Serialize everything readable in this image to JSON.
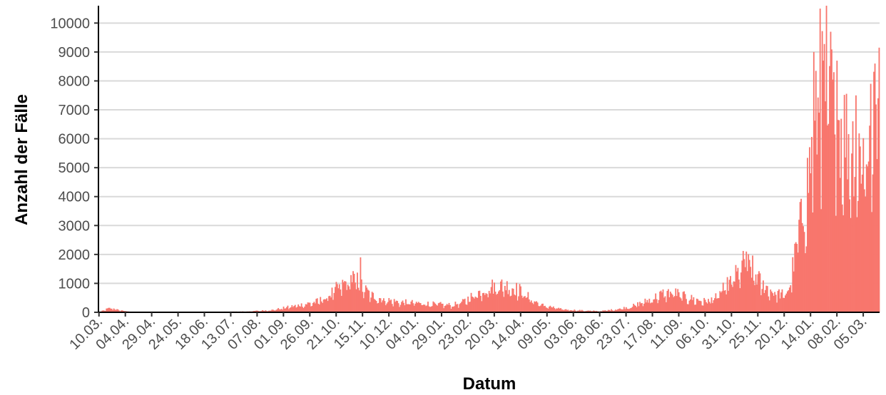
{
  "chart_data": {
    "type": "bar",
    "title": "",
    "xlabel": "Datum",
    "ylabel": "Anzahl der Fälle",
    "ylim": [
      0,
      10600
    ],
    "y_ticks": [
      0,
      1000,
      2000,
      3000,
      4000,
      5000,
      6000,
      7000,
      8000,
      9000,
      10000
    ],
    "y_tick_labels": [
      "0",
      "1000",
      "2000",
      "3000",
      "4000",
      "5000",
      "6000",
      "7000",
      "8000",
      "9000",
      "10000"
    ],
    "x_tick_labels": [
      "10.03.",
      "04.04.",
      "29.04.",
      "24.05.",
      "18.06.",
      "13.07.",
      "07.08.",
      "01.09.",
      "26.09.",
      "21.10.",
      "15.11.",
      "10.12.",
      "04.01.",
      "29.01.",
      "23.02.",
      "20.03.",
      "14.04.",
      "09.05.",
      "03.06.",
      "28.06.",
      "23.07.",
      "17.08.",
      "11.09.",
      "06.10.",
      "31.10.",
      "25.11.",
      "20.12.",
      "14.01.",
      "08.02.",
      "05.03."
    ],
    "x_tick_step_days": 25,
    "grid": true,
    "bar_color": "#F8766D",
    "series": [
      {
        "anchors": [
          [
            0,
            0
          ],
          [
            8,
            120
          ],
          [
            12,
            150
          ],
          [
            18,
            80
          ],
          [
            30,
            20
          ],
          [
            60,
            10
          ],
          [
            110,
            15
          ],
          [
            140,
            30
          ],
          [
            165,
            80
          ],
          [
            175,
            150
          ],
          [
            190,
            250
          ],
          [
            205,
            350
          ],
          [
            215,
            500
          ],
          [
            225,
            800
          ],
          [
            235,
            1050
          ],
          [
            240,
            1200
          ],
          [
            245,
            1100
          ],
          [
            250,
            850
          ],
          [
            258,
            600
          ],
          [
            270,
            450
          ],
          [
            285,
            350
          ],
          [
            300,
            330
          ],
          [
            320,
            280
          ],
          [
            335,
            250
          ],
          [
            345,
            350
          ],
          [
            355,
            600
          ],
          [
            368,
            850
          ],
          [
            380,
            950
          ],
          [
            390,
            900
          ],
          [
            400,
            750
          ],
          [
            410,
            450
          ],
          [
            420,
            250
          ],
          [
            440,
            100
          ],
          [
            460,
            60
          ],
          [
            475,
            40
          ],
          [
            490,
            100
          ],
          [
            505,
            200
          ],
          [
            520,
            400
          ],
          [
            535,
            650
          ],
          [
            545,
            700
          ],
          [
            555,
            550
          ],
          [
            565,
            450
          ],
          [
            575,
            380
          ],
          [
            585,
            500
          ],
          [
            595,
            900
          ],
          [
            605,
            1300
          ],
          [
            612,
            1700
          ],
          [
            620,
            1500
          ],
          [
            628,
            1000
          ],
          [
            640,
            700
          ],
          [
            650,
            600
          ],
          [
            655,
            900
          ],
          [
            662,
            2300
          ],
          [
            670,
            4000
          ],
          [
            680,
            6500
          ],
          [
            688,
            7800
          ],
          [
            696,
            7200
          ],
          [
            704,
            6500
          ],
          [
            712,
            6000
          ],
          [
            720,
            5500
          ],
          [
            728,
            5800
          ],
          [
            735,
            6500
          ],
          [
            740,
            7500
          ]
        ],
        "noise_amplitude": 0.32,
        "highlight_days": [
          [
            248,
            1900
          ],
          [
            614,
            2100
          ],
          [
            690,
            10600
          ],
          [
            694,
            9700
          ],
          [
            684,
            10500
          ],
          [
            678,
            9000
          ],
          [
            700,
            8700
          ],
          [
            718,
            7500
          ],
          [
            732,
            7900
          ],
          [
            740,
            9150
          ],
          [
            736,
            8600
          ],
          [
            664,
            3200
          ]
        ]
      }
    ]
  }
}
